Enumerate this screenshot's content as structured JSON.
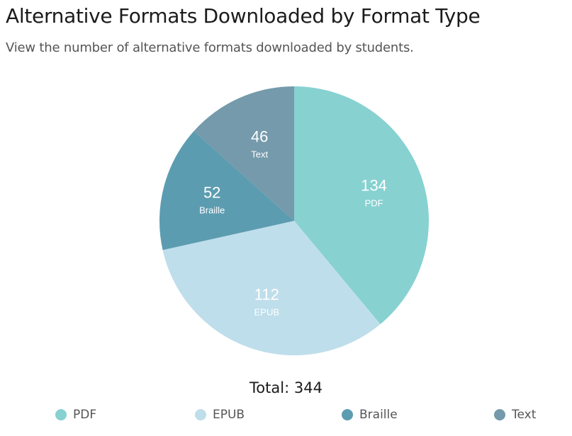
{
  "header": {
    "title": "Alternative Formats Downloaded by Format Type",
    "subtitle": "View the number of alternative formats downloaded by students."
  },
  "total": {
    "label": "Total",
    "value": "344"
  },
  "chart_data": {
    "type": "pie",
    "categories": [
      "PDF",
      "EPUB",
      "Braille",
      "Text"
    ],
    "values": [
      134,
      112,
      52,
      46
    ],
    "colors": [
      "#87d1d1",
      "#bfdeeb",
      "#5c9cb0",
      "#749aab"
    ],
    "total": 344,
    "start_angle": "top (12 o'clock), clockwise",
    "legend_position": "bottom"
  }
}
